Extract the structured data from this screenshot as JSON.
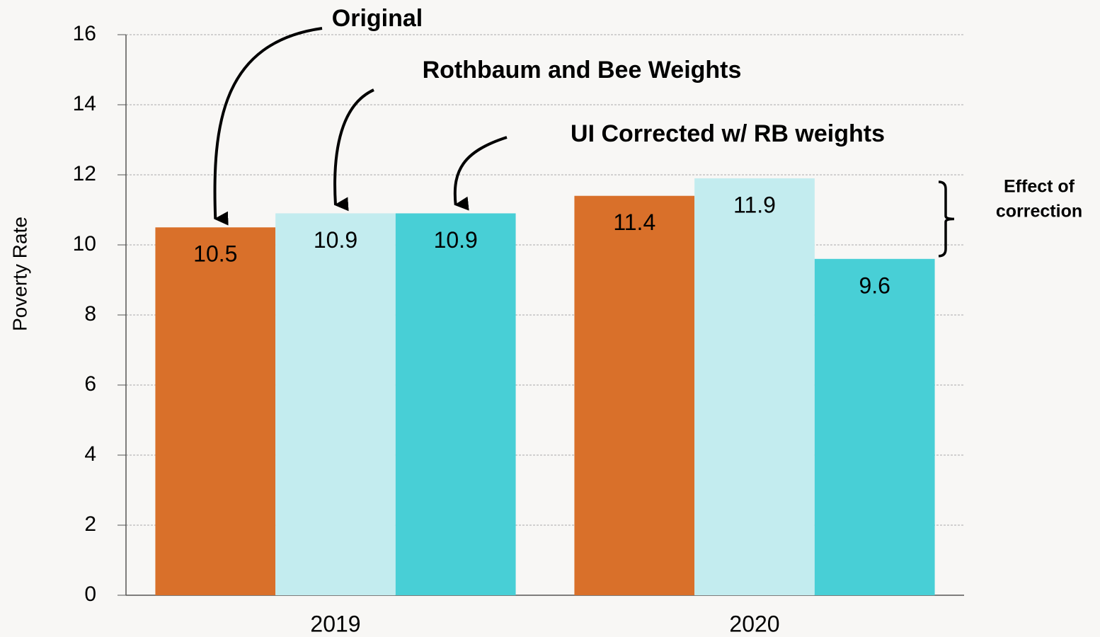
{
  "chart_data": {
    "type": "bar",
    "y_label": "Poverty Rate",
    "categories": [
      "2019",
      "2020"
    ],
    "series": [
      {
        "name": "Original",
        "color": "#d9702a",
        "values": [
          10.5,
          11.4
        ]
      },
      {
        "name": "Rothbaum and Bee Weights",
        "color": "#c3ecef",
        "values": [
          10.9,
          11.9
        ]
      },
      {
        "name": "UI Corrected w/ RB weights",
        "color": "#48cfd6",
        "values": [
          10.9,
          9.6
        ]
      }
    ],
    "annotation": [
      "Effect of",
      "correction"
    ],
    "ylim": [
      0,
      16
    ],
    "yticks": [
      0,
      2,
      4,
      6,
      8,
      10,
      12,
      14,
      16
    ],
    "grid": true
  }
}
